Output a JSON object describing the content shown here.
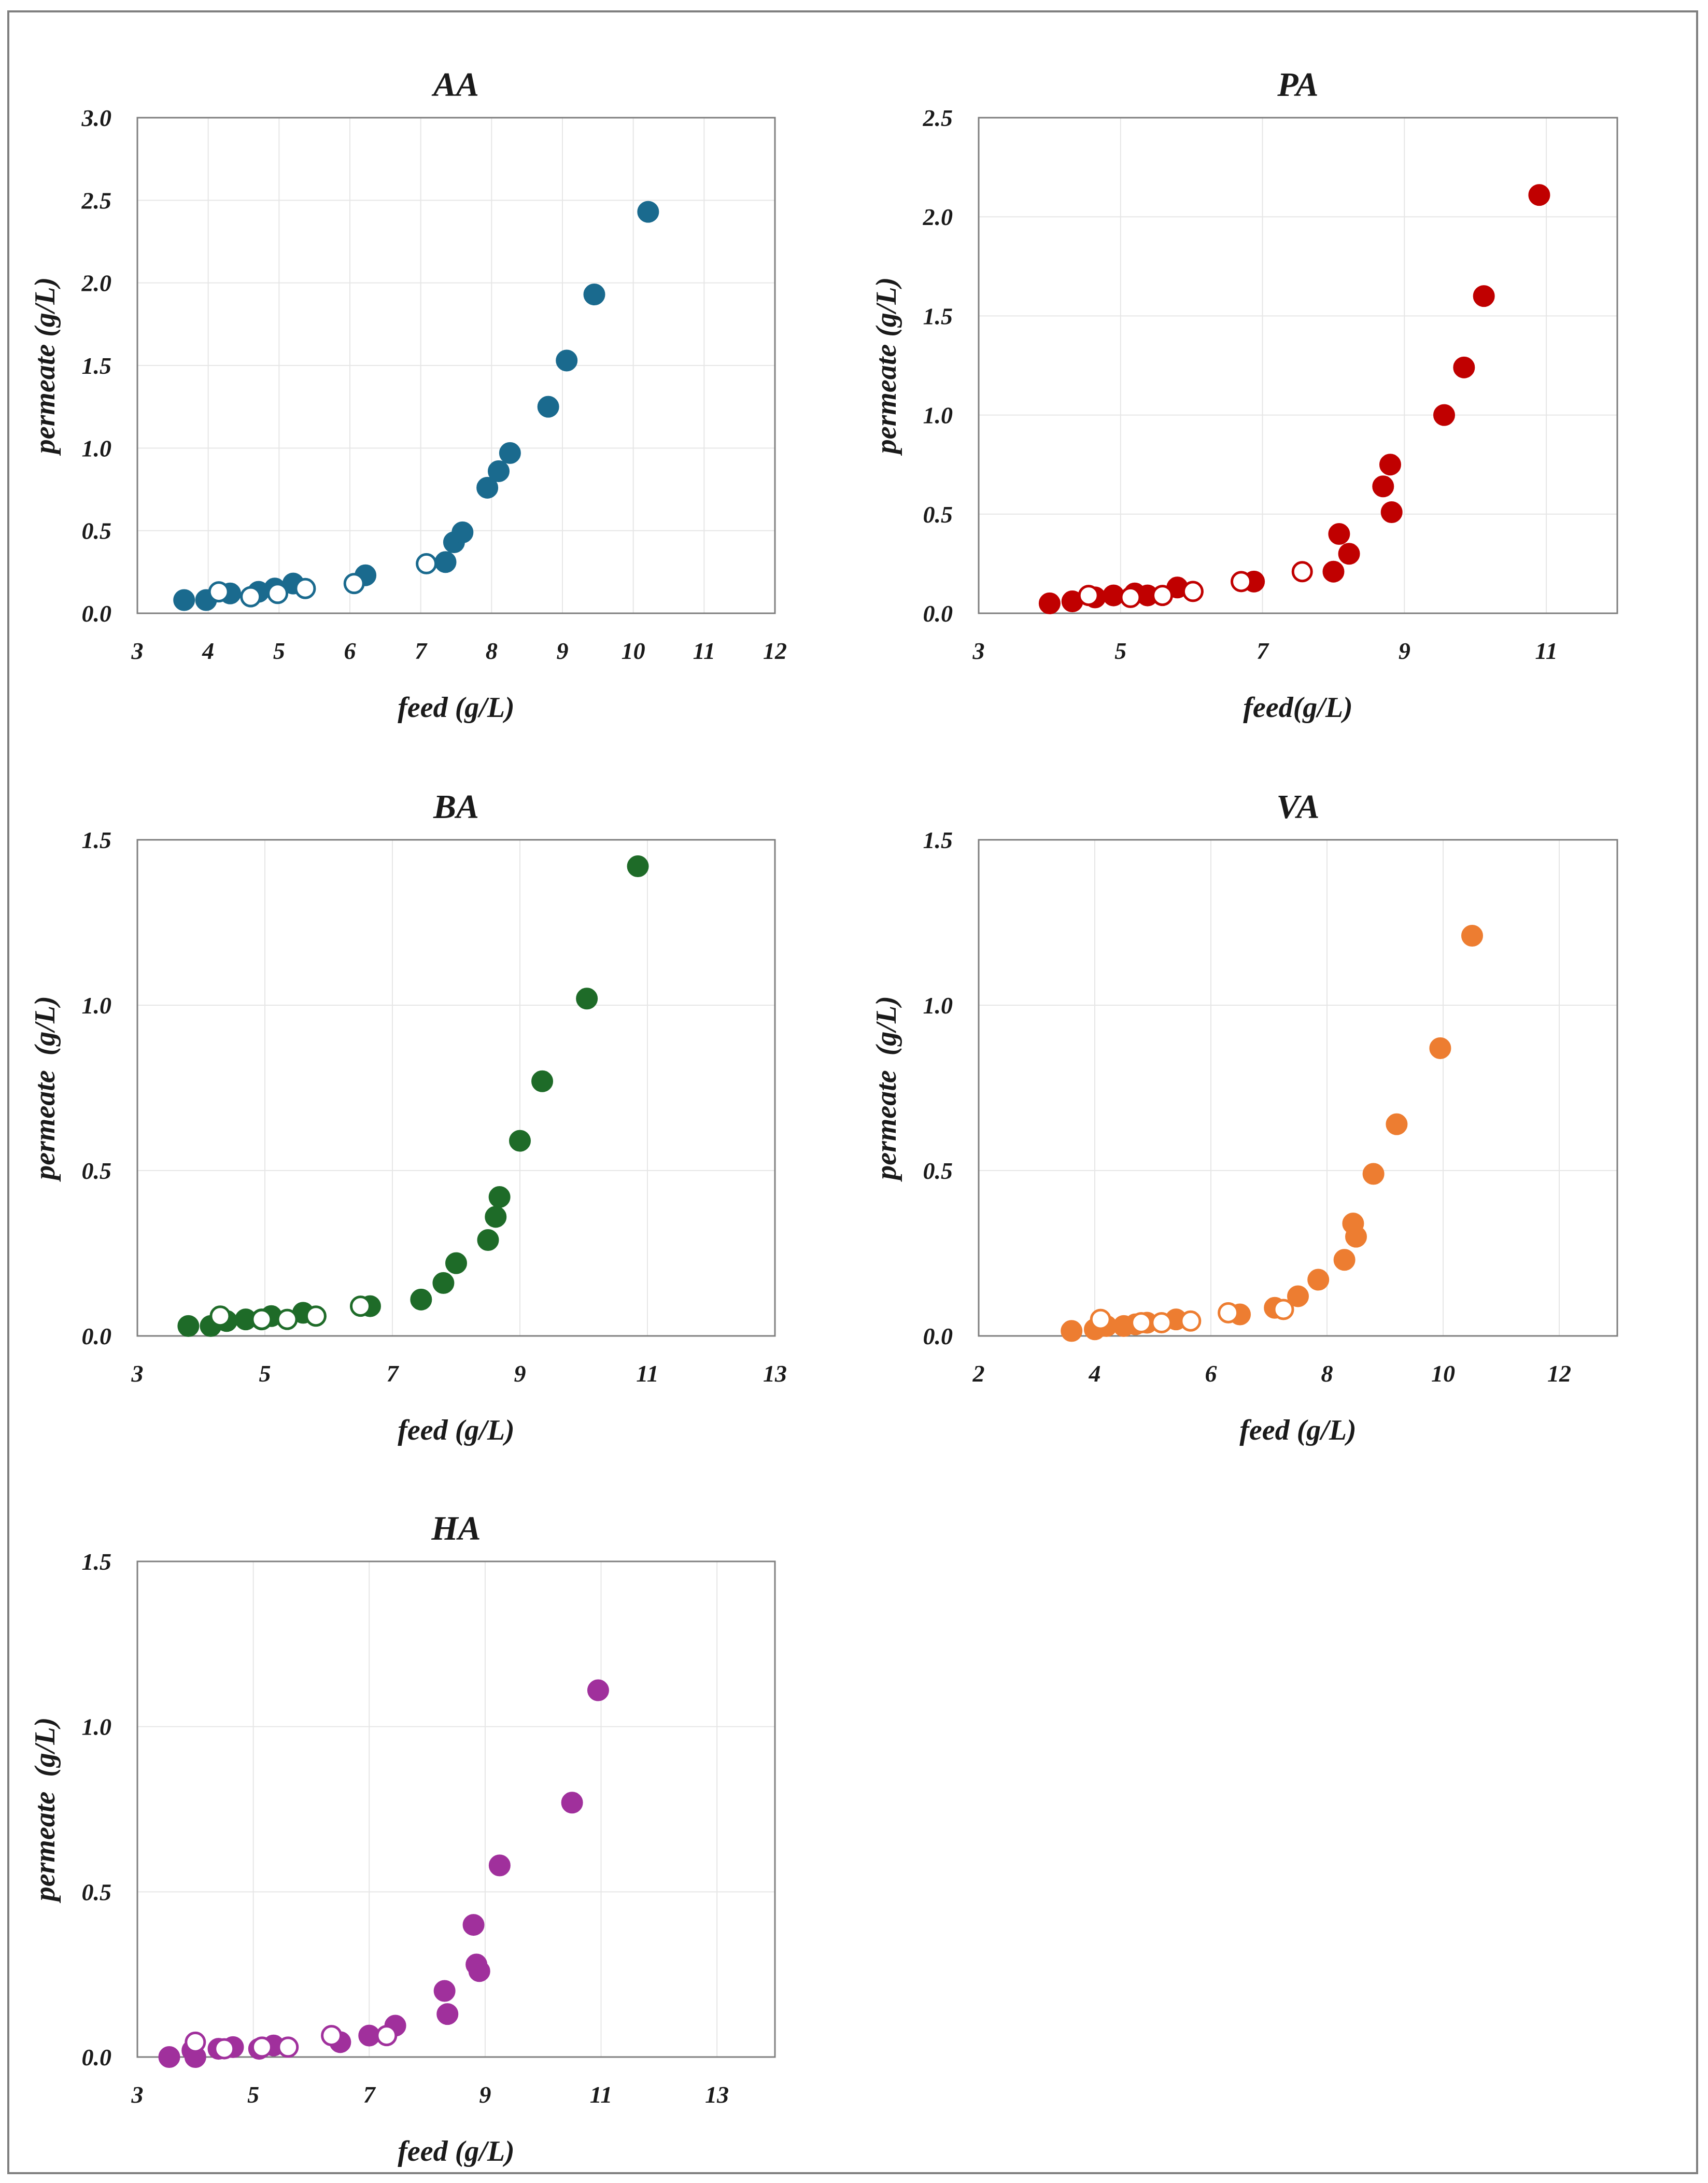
{
  "chart_data": [
    {
      "type": "scatter",
      "title": "AA",
      "xlabel": "feed (g/L)",
      "ylabel": "permeate (g/L)",
      "xlim": [
        3,
        12
      ],
      "ylim": [
        0,
        3.0
      ],
      "xticks": [
        3,
        4,
        5,
        6,
        7,
        8,
        9,
        10,
        11,
        12
      ],
      "xtick_labels": [
        "3",
        "4",
        "5",
        "6",
        "7",
        "8",
        "9",
        "10",
        "11",
        "12"
      ],
      "yticks": [
        0,
        0.5,
        1.0,
        1.5,
        2.0,
        2.5,
        3.0
      ],
      "ytick_labels": [
        "0.0",
        "0.5",
        "1.0",
        "1.5",
        "2.0",
        "2.5",
        "3.0"
      ],
      "color": "#1a6a8e",
      "series": [
        {
          "name": "filled",
          "filled": true,
          "x": [
            3.66,
            3.97,
            4.31,
            4.71,
            4.94,
            5.2,
            6.22,
            7.35,
            7.47,
            7.59,
            7.94,
            8.1,
            8.26,
            8.8,
            9.06,
            9.45,
            10.21
          ],
          "y": [
            0.08,
            0.08,
            0.12,
            0.13,
            0.15,
            0.18,
            0.23,
            0.31,
            0.43,
            0.49,
            0.76,
            0.86,
            0.97,
            1.25,
            1.53,
            1.93,
            2.43
          ]
        },
        {
          "name": "open",
          "filled": false,
          "x": [
            4.15,
            4.6,
            4.98,
            5.37,
            6.06,
            7.08
          ],
          "y": [
            0.13,
            0.1,
            0.12,
            0.15,
            0.18,
            0.3
          ]
        }
      ]
    },
    {
      "type": "scatter",
      "title": "PA",
      "xlabel": "feed(g/L)",
      "ylabel": "permeate (g/L)",
      "xlim": [
        3,
        12
      ],
      "ylim": [
        0,
        2.5
      ],
      "xticks": [
        3,
        5,
        7,
        9,
        11
      ],
      "xtick_labels": [
        "3",
        "5",
        "7",
        "9",
        "11"
      ],
      "yticks": [
        0,
        0.5,
        1.0,
        1.5,
        2.0,
        2.5
      ],
      "ytick_labels": [
        "0.0",
        "0.5",
        "1.0",
        "1.5",
        "2.0",
        "2.5"
      ],
      "color": "#c00000",
      "series": [
        {
          "name": "filled",
          "filled": true,
          "x": [
            4.0,
            4.32,
            4.64,
            4.9,
            5.2,
            5.38,
            5.8,
            6.88,
            8.0,
            8.08,
            8.22,
            8.7,
            8.8,
            8.82,
            9.56,
            9.84,
            10.12,
            10.9
          ],
          "y": [
            0.05,
            0.06,
            0.08,
            0.09,
            0.1,
            0.09,
            0.13,
            0.16,
            0.21,
            0.4,
            0.3,
            0.64,
            0.75,
            0.51,
            1.0,
            1.24,
            1.6,
            2.11
          ]
        },
        {
          "name": "open",
          "filled": false,
          "x": [
            4.55,
            5.14,
            5.59,
            6.02,
            6.7,
            7.56
          ],
          "y": [
            0.09,
            0.08,
            0.09,
            0.11,
            0.16,
            0.21
          ]
        }
      ]
    },
    {
      "type": "scatter",
      "title": "BA",
      "xlabel": "feed (g/L)",
      "ylabel": "permeate  (g/L)",
      "xlim": [
        3,
        13
      ],
      "ylim": [
        0,
        1.5
      ],
      "xticks": [
        3,
        5,
        7,
        9,
        11,
        13
      ],
      "xtick_labels": [
        "3",
        "5",
        "7",
        "9",
        "11",
        "13"
      ],
      "yticks": [
        0,
        0.5,
        1.0,
        1.5
      ],
      "ytick_labels": [
        "0.0",
        "0.5",
        "1.0",
        "1.5"
      ],
      "color": "#1e6b28",
      "series": [
        {
          "name": "filled",
          "filled": true,
          "x": [
            3.8,
            4.15,
            4.4,
            4.7,
            4.95,
            5.1,
            5.6,
            6.65,
            7.45,
            7.8,
            8.0,
            8.5,
            8.62,
            8.68,
            9.0,
            9.35,
            10.05,
            10.85
          ],
          "y": [
            0.03,
            0.03,
            0.045,
            0.05,
            0.05,
            0.06,
            0.07,
            0.09,
            0.11,
            0.16,
            0.22,
            0.29,
            0.36,
            0.42,
            0.59,
            0.77,
            1.02,
            1.42
          ]
        },
        {
          "name": "open",
          "filled": false,
          "x": [
            4.3,
            4.95,
            5.35,
            5.8,
            6.5
          ],
          "y": [
            0.06,
            0.05,
            0.05,
            0.06,
            0.09
          ]
        }
      ]
    },
    {
      "type": "scatter",
      "title": "VA",
      "xlabel": "feed (g/L)",
      "ylabel": "permeate  (g/L)",
      "xlim": [
        2,
        13
      ],
      "ylim": [
        0,
        1.5
      ],
      "xticks": [
        2,
        4,
        6,
        8,
        10,
        12
      ],
      "xtick_labels": [
        "2",
        "4",
        "6",
        "8",
        "10",
        "12"
      ],
      "yticks": [
        0,
        0.5,
        1.0,
        1.5
      ],
      "ytick_labels": [
        "0.0",
        "0.5",
        "1.0",
        "1.5"
      ],
      "color": "#ed7d31",
      "series": [
        {
          "name": "filled",
          "filled": true,
          "x": [
            3.6,
            4.0,
            4.2,
            4.5,
            4.7,
            4.9,
            5.4,
            6.5,
            7.1,
            7.5,
            7.85,
            8.3,
            8.45,
            8.5,
            8.8,
            9.2,
            9.95,
            10.5
          ],
          "y": [
            0.015,
            0.02,
            0.03,
            0.03,
            0.035,
            0.04,
            0.05,
            0.065,
            0.085,
            0.12,
            0.17,
            0.23,
            0.34,
            0.3,
            0.49,
            0.64,
            0.87,
            1.21
          ]
        },
        {
          "name": "open",
          "filled": false,
          "x": [
            4.1,
            4.8,
            5.15,
            5.65,
            6.3,
            7.25
          ],
          "y": [
            0.05,
            0.04,
            0.04,
            0.045,
            0.07,
            0.08
          ]
        }
      ]
    },
    {
      "type": "scatter",
      "title": "HA",
      "xlabel": "feed (g/L)",
      "ylabel": "permeate  (g/L)",
      "xlim": [
        3,
        14
      ],
      "ylim": [
        0,
        1.5
      ],
      "xticks": [
        3,
        5,
        7,
        9,
        11,
        13
      ],
      "xtick_labels": [
        "3",
        "5",
        "7",
        "9",
        "11",
        "13"
      ],
      "yticks": [
        0,
        0.5,
        1.0,
        1.5
      ],
      "ytick_labels": [
        "0.0",
        "0.5",
        "1.0",
        "1.5"
      ],
      "color": "#a0309c",
      "series": [
        {
          "name": "filled",
          "filled": true,
          "x": [
            3.55,
            3.95,
            4.0,
            4.4,
            4.65,
            5.1,
            5.35,
            6.5,
            7.0,
            7.45,
            8.3,
            8.35,
            8.8,
            8.85,
            8.9,
            9.25,
            10.5,
            10.95
          ],
          "y": [
            0.0,
            0.02,
            0.0,
            0.025,
            0.03,
            0.025,
            0.035,
            0.045,
            0.065,
            0.095,
            0.2,
            0.13,
            0.4,
            0.28,
            0.26,
            0.58,
            0.77,
            1.11
          ]
        },
        {
          "name": "open",
          "filled": false,
          "x": [
            4.0,
            4.5,
            5.15,
            5.6,
            6.35,
            7.3
          ],
          "y": [
            0.045,
            0.025,
            0.03,
            0.03,
            0.065,
            0.065
          ]
        }
      ]
    }
  ]
}
